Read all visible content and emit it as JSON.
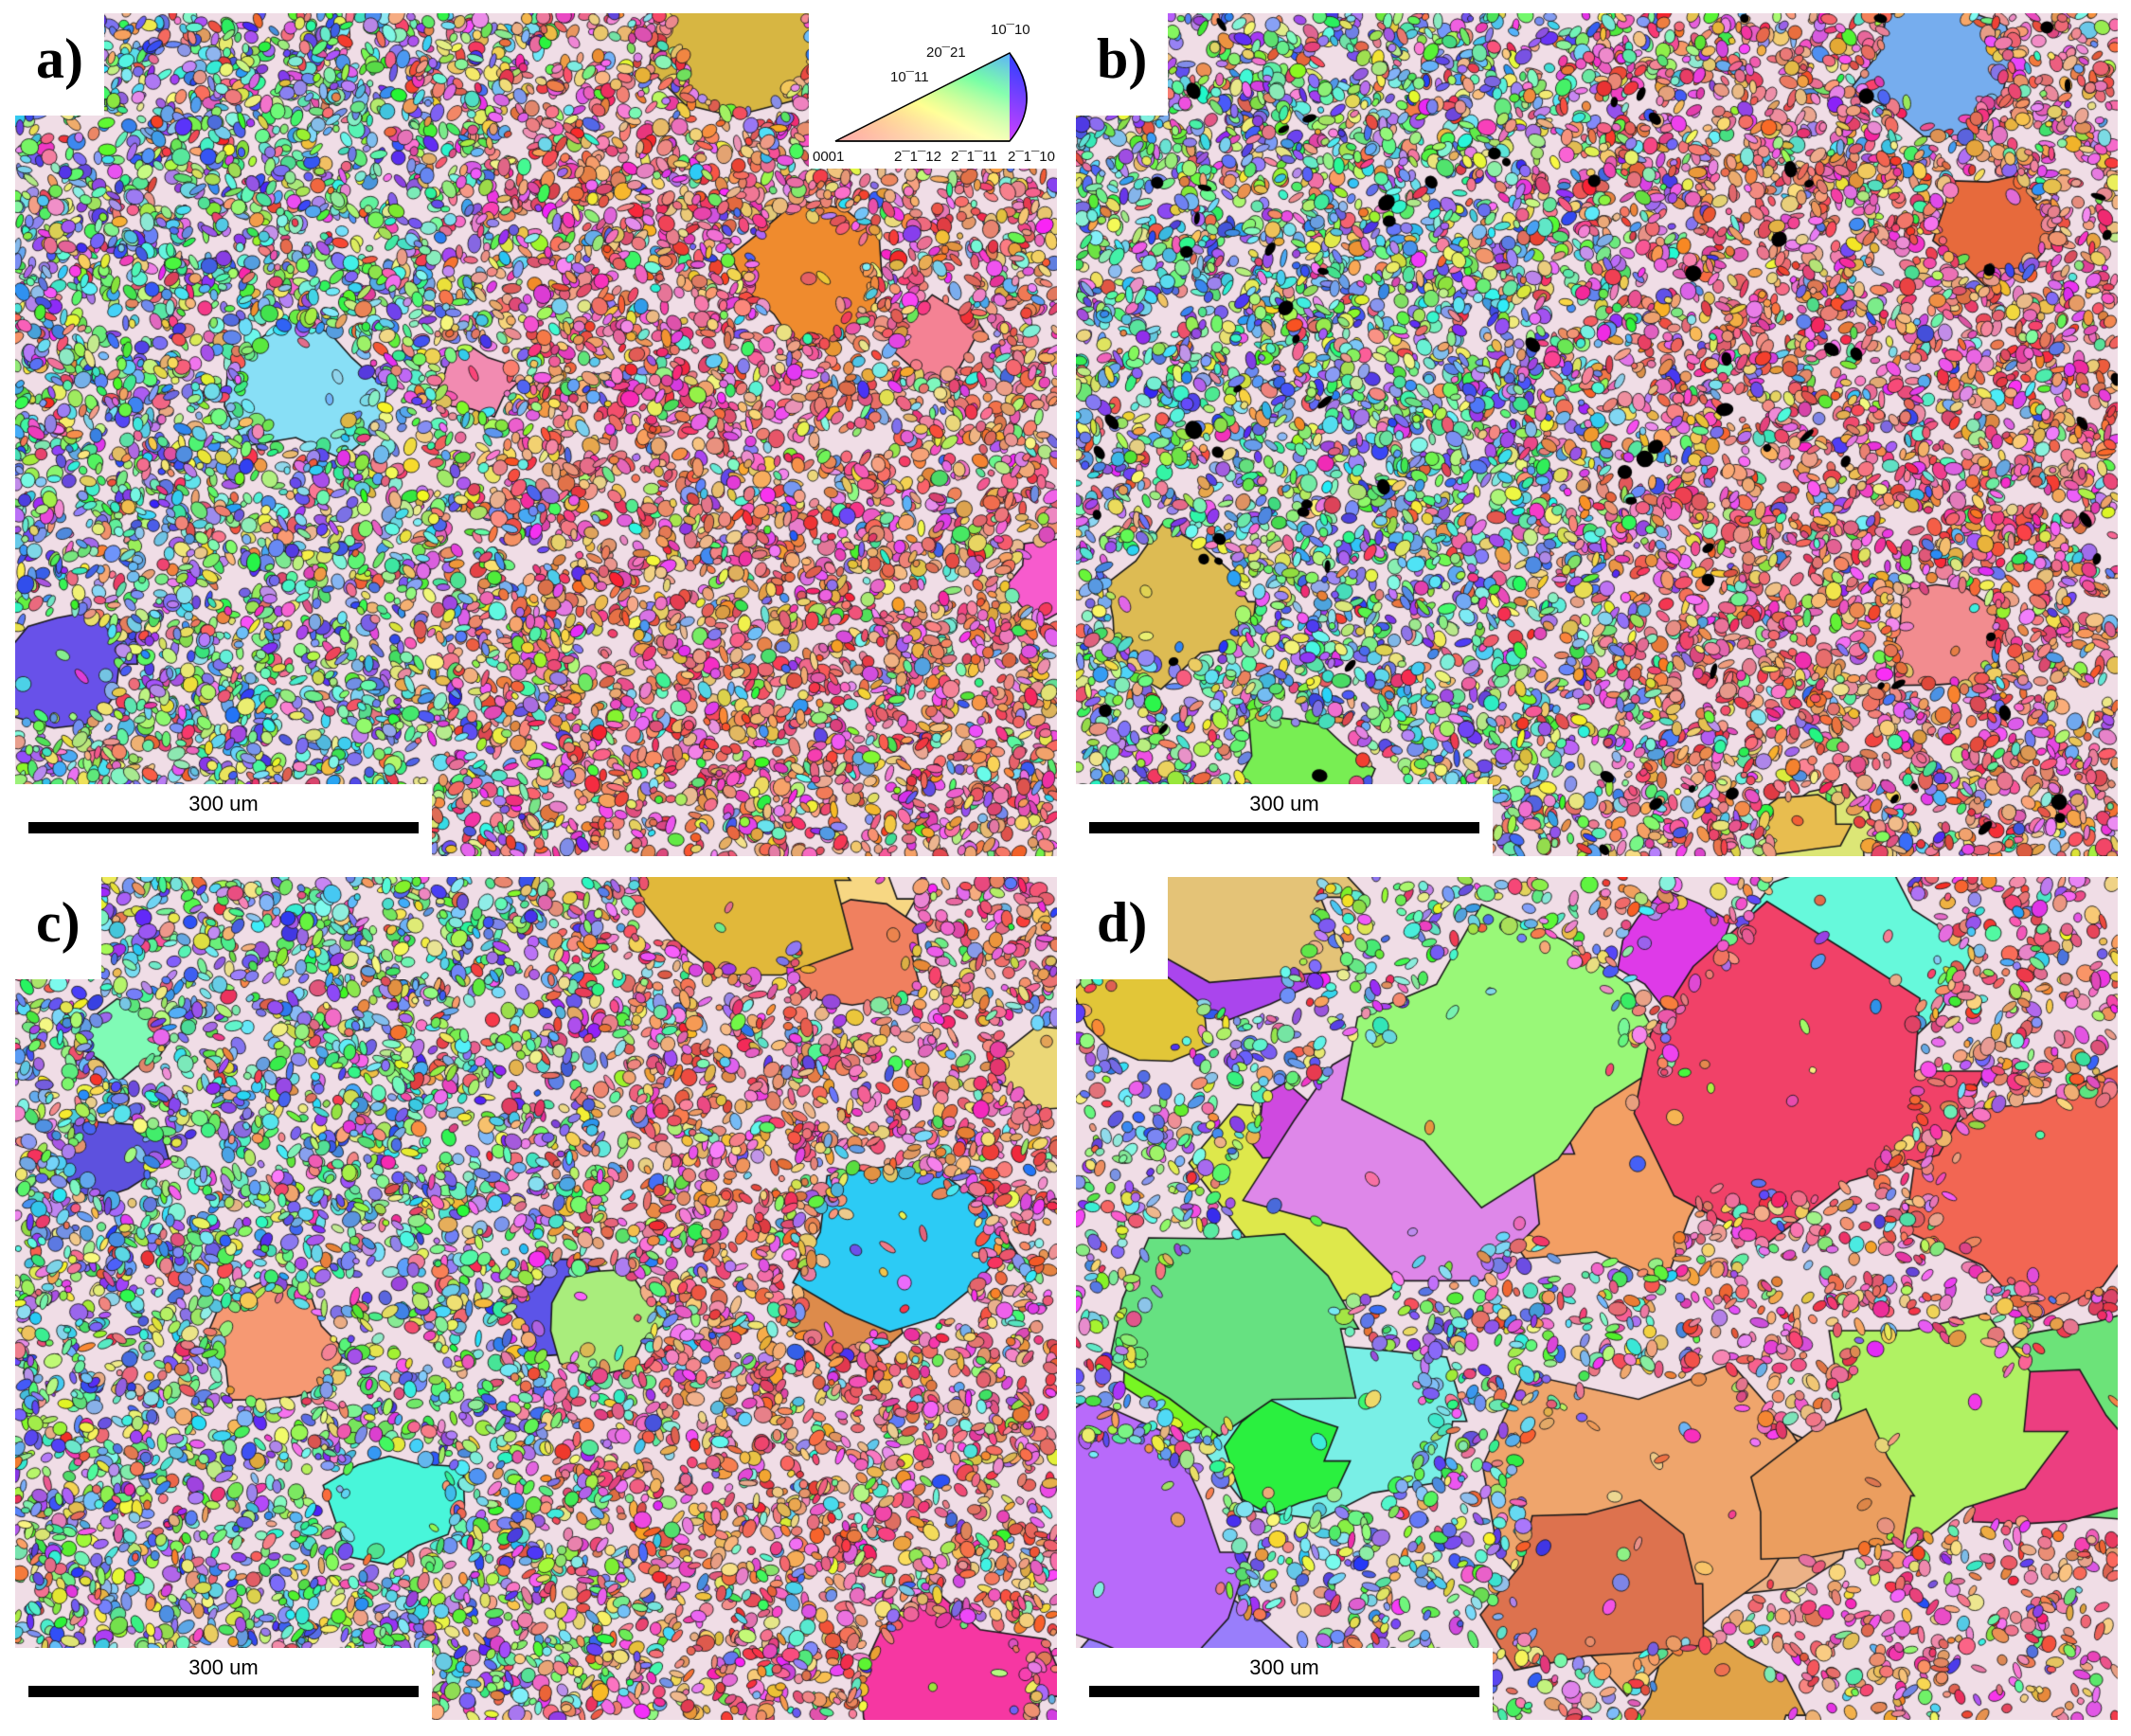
{
  "panels": [
    {
      "id": "a",
      "label": "a)",
      "scale_label": "300 um",
      "mix": 0.45,
      "coarse": 0.03,
      "seed": 11
    },
    {
      "id": "b",
      "label": "b)",
      "scale_label": "300 um",
      "mix": 0.5,
      "coarse": 0.06,
      "seed": 23
    },
    {
      "id": "c",
      "label": "c)",
      "scale_label": "300 um",
      "mix": 0.55,
      "coarse": 0.18,
      "seed": 37
    },
    {
      "id": "d",
      "label": "d)",
      "scale_label": "300 um",
      "mix": 0.5,
      "coarse": 0.55,
      "seed": 41
    }
  ],
  "ipf_legend": {
    "corner_top": "10¯10",
    "pole_20": "20¯21",
    "pole_10": "10¯11",
    "bottom_0001": "0001",
    "bottom_2112": "2¯1¯12",
    "bottom_2111": "2¯1¯11",
    "bottom_2110": "2¯1¯10"
  },
  "colors": {
    "grain_boundary": "#1a1a1a",
    "label_bg": "#ffffff"
  }
}
